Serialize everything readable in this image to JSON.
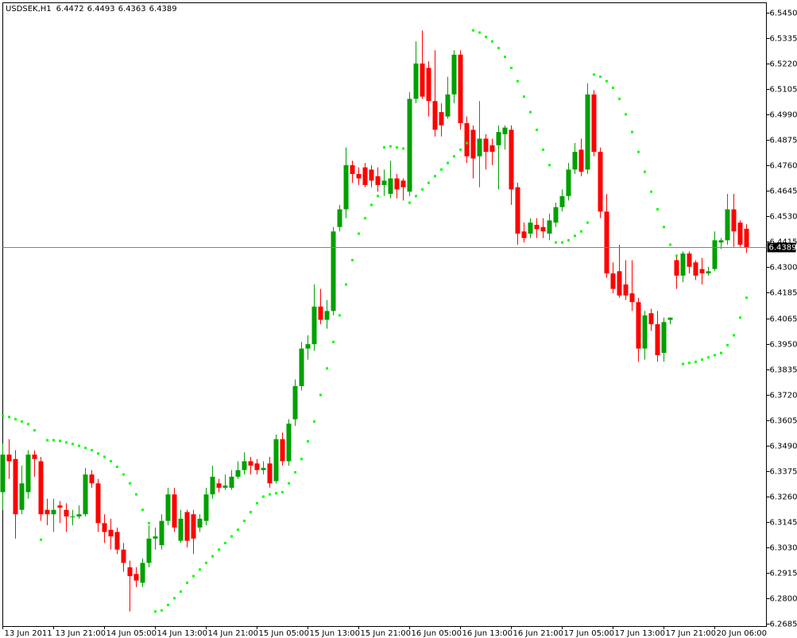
{
  "chart_data": {
    "type": "candlestick",
    "title": "USDSEK,H1",
    "up_color": "#00a000",
    "down_color": "#ff0000",
    "sar_color": "#00ff00",
    "ylim": [
      6.2674,
      6.5493
    ],
    "yticks": [
      {
        "value": 6.545,
        "label": "6.5450"
      },
      6.5335,
      {
        "value": 6.522,
        "label": "6.5220"
      },
      6.5105,
      {
        "value": 6.499,
        "label": "6.4990"
      },
      6.4875,
      {
        "value": 6.476,
        "label": "6.4760"
      },
      6.4645,
      {
        "value": 6.453,
        "label": "6.4530"
      },
      6.4415,
      {
        "value": 6.43,
        "label": "6.4300"
      },
      6.4185,
      6.4065,
      {
        "value": 6.395,
        "label": "6.3950"
      },
      6.3835,
      {
        "value": 6.372,
        "label": "6.3720"
      },
      6.3605,
      {
        "value": 6.349,
        "label": "6.3490"
      },
      6.3375,
      {
        "value": 6.326,
        "label": "6.3260"
      },
      6.3145,
      {
        "value": 6.303,
        "label": "6.3030"
      },
      6.2915,
      {
        "value": 6.28,
        "label": "6.2800"
      },
      6.2685
    ],
    "categories": [
      "13 Jun 2011",
      null,
      null,
      null,
      null,
      null,
      null,
      null,
      "13 Jun 21:00",
      null,
      null,
      null,
      null,
      null,
      null,
      null,
      "14 Jun 05:00",
      null,
      null,
      null,
      null,
      null,
      null,
      null,
      "14 Jun 13:00",
      null,
      null,
      null,
      null,
      null,
      null,
      null,
      "14 Jun 21:00",
      null,
      null,
      null,
      null,
      null,
      null,
      null,
      "15 Jun 05:00",
      null,
      null,
      null,
      null,
      null,
      null,
      null,
      "15 Jun 13:00",
      null,
      null,
      null,
      null,
      null,
      null,
      null,
      "15 Jun 21:00",
      null,
      null,
      null,
      null,
      null,
      null,
      null,
      "16 Jun 05:00",
      null,
      null,
      null,
      null,
      null,
      null,
      null,
      "16 Jun 13:00",
      null,
      null,
      null,
      null,
      null,
      null,
      null,
      "16 Jun 21:00",
      null,
      null,
      null,
      null,
      null,
      null,
      null,
      "17 Jun 05:00",
      null,
      null,
      null,
      null,
      null,
      null,
      null,
      "17 Jun 13:00",
      null,
      null,
      null,
      null,
      null,
      null,
      null,
      "17 Jun 21:00",
      null,
      null,
      null,
      null,
      null,
      null,
      null,
      "20 Jun 06:00",
      null,
      null,
      null,
      null,
      null
    ],
    "open": [
      6.328,
      6.345,
      6.343,
      6.32,
      6.328,
      6.345,
      6.342,
      6.32,
      6.318,
      6.322,
      6.32,
      6.317,
      6.317,
      6.318,
      6.336,
      6.332,
      6.314,
      6.311,
      6.31,
      6.302,
      6.294,
      6.291,
      6.287,
      6.296,
      6.307,
      6.304,
      6.315,
      6.327,
      6.306,
      6.319,
      6.318,
      6.312,
      6.315,
      6.327,
      6.332,
      6.33,
      6.33,
      6.335,
      6.338,
      6.342,
      6.341,
      6.338,
      6.341,
      6.333,
      6.352,
      6.342,
      6.361,
      6.376,
      6.393,
      6.395,
      6.412,
      6.406,
      6.41,
      6.448,
      6.456,
      6.476,
      6.472,
      6.475,
      6.474,
      6.471,
      6.467,
      6.463,
      6.47,
      6.469,
      6.464,
      6.506,
      6.522,
      6.52,
      6.505,
      6.5,
      6.498,
      6.508,
      6.526,
      6.495,
      6.492,
      6.48,
      6.488,
      6.485,
      6.485,
      6.49,
      6.492,
      6.466,
      6.446,
      6.445,
      6.449,
      6.448,
      6.445,
      6.45,
      6.457,
      6.462,
      6.474,
      6.483,
      6.474,
      6.508,
      6.482,
      6.455,
      6.427,
      6.428,
      6.422,
      6.418,
      6.414,
      6.393,
      6.409,
      6.404,
      6.391,
      6.406,
      6.433,
      6.426,
      6.436,
      6.432,
      6.429,
      6.427,
      6.429,
      6.441,
      6.442,
      6.456,
      6.45,
      6.4472
    ],
    "high": [
      6.35,
      6.352,
      6.347,
      6.34,
      6.347,
      6.347,
      6.344,
      6.325,
      6.325,
      6.324,
      6.323,
      6.32,
      6.322,
      6.339,
      6.338,
      6.334,
      6.318,
      6.316,
      6.312,
      6.305,
      6.297,
      6.294,
      6.298,
      6.313,
      6.312,
      6.318,
      6.33,
      6.33,
      6.32,
      6.32,
      6.32,
      6.318,
      6.33,
      6.34,
      6.334,
      6.336,
      6.338,
      6.342,
      6.346,
      6.344,
      6.343,
      6.342,
      6.344,
      6.354,
      6.355,
      6.361,
      6.379,
      6.396,
      6.399,
      6.422,
      6.42,
      6.415,
      6.448,
      6.458,
      6.484,
      6.478,
      6.475,
      6.477,
      6.476,
      6.475,
      6.474,
      6.478,
      6.472,
      6.47,
      6.509,
      6.532,
      6.537,
      6.523,
      6.528,
      6.504,
      6.516,
      6.528,
      6.528,
      6.498,
      6.494,
      6.505,
      6.49,
      6.488,
      6.494,
      6.494,
      6.494,
      6.468,
      6.45,
      6.452,
      6.452,
      6.452,
      6.454,
      6.459,
      6.465,
      6.477,
      6.486,
      6.488,
      6.513,
      6.51,
      6.484,
      6.463,
      6.432,
      6.44,
      6.433,
      6.433,
      6.416,
      6.41,
      6.411,
      6.41,
      6.407,
      6.407,
      6.435,
      6.437,
      6.437,
      6.433,
      6.434,
      6.43,
      6.446,
      6.443,
      6.463,
      6.463,
      6.451,
      6.4493
    ],
    "low": [
      6.32,
      6.334,
      6.307,
      6.318,
      6.325,
      6.335,
      6.315,
      6.313,
      6.31,
      6.314,
      6.31,
      6.313,
      6.316,
      6.317,
      6.33,
      6.31,
      6.305,
      6.302,
      6.3,
      6.292,
      6.274,
      6.285,
      6.285,
      6.294,
      6.302,
      6.302,
      6.313,
      6.31,
      6.305,
      6.303,
      6.3,
      6.31,
      6.313,
      6.325,
      6.328,
      6.329,
      6.329,
      6.334,
      6.336,
      6.336,
      6.336,
      6.336,
      6.33,
      6.332,
      6.34,
      6.34,
      6.358,
      6.374,
      6.388,
      6.392,
      6.404,
      6.402,
      6.408,
      6.446,
      6.452,
      6.468,
      6.467,
      6.466,
      6.466,
      6.464,
      6.462,
      6.461,
      6.461,
      6.46,
      6.462,
      6.504,
      6.506,
      6.498,
      6.489,
      6.489,
      6.497,
      6.504,
      6.492,
      6.477,
      6.47,
      6.466,
      6.474,
      6.476,
      6.465,
      6.483,
      6.458,
      6.44,
      6.441,
      6.443,
      6.443,
      6.443,
      6.442,
      6.448,
      6.455,
      6.46,
      6.472,
      6.471,
      6.472,
      6.48,
      6.452,
      6.425,
      6.418,
      6.416,
      6.415,
      6.41,
      6.387,
      6.388,
      6.401,
      6.387,
      6.387,
      6.404,
      6.42,
      6.423,
      6.427,
      6.424,
      6.422,
      6.426,
      6.428,
      6.438,
      6.44,
      6.439,
      6.439,
      6.4363
    ],
    "close": [
      6.345,
      6.342,
      6.318,
      6.332,
      6.345,
      6.343,
      6.318,
      6.318,
      6.32,
      6.321,
      6.317,
      6.317,
      6.318,
      6.336,
      6.332,
      6.314,
      6.31,
      6.308,
      6.302,
      6.296,
      6.29,
      6.288,
      6.296,
      6.307,
      6.308,
      6.315,
      6.327,
      6.312,
      6.316,
      6.306,
      6.307,
      6.316,
      6.327,
      6.335,
      6.33,
      6.331,
      6.335,
      6.338,
      6.342,
      6.34,
      6.338,
      6.339,
      6.332,
      6.352,
      6.342,
      6.359,
      6.376,
      6.393,
      6.395,
      6.412,
      6.406,
      6.41,
      6.446,
      6.456,
      6.476,
      6.472,
      6.47,
      6.467,
      6.469,
      6.467,
      6.469,
      6.47,
      6.465,
      6.466,
      6.506,
      6.522,
      6.507,
      6.505,
      6.492,
      6.494,
      6.508,
      6.526,
      6.495,
      6.48,
      6.479,
      6.488,
      6.482,
      6.482,
      6.491,
      6.493,
      6.465,
      6.445,
      6.443,
      6.45,
      6.447,
      6.446,
      6.451,
      6.457,
      6.462,
      6.474,
      6.482,
      6.473,
      6.508,
      6.482,
      6.455,
      6.427,
      6.42,
      6.417,
      6.417,
      6.414,
      6.393,
      6.408,
      6.404,
      6.39,
      6.405,
      6.407,
      6.426,
      6.436,
      6.43,
      6.426,
      6.427,
      6.428,
      6.442,
      6.442,
      6.456,
      6.446,
      6.44,
      6.4389
    ],
    "sar": [
      6.3627,
      6.362,
      6.361,
      6.36,
      6.3588,
      6.356,
      6.3065,
      6.3515,
      6.3515,
      6.3512,
      6.3505,
      6.3498,
      6.349,
      6.348,
      6.347,
      6.3455,
      6.344,
      6.342,
      6.3395,
      6.336,
      6.332,
      6.327,
      6.32,
      6.314,
      6.274,
      6.2745,
      6.277,
      6.28,
      6.283,
      6.287,
      6.29,
      6.293,
      6.296,
      6.299,
      6.302,
      6.305,
      6.308,
      6.311,
      6.315,
      6.319,
      6.323,
      6.326,
      6.327,
      6.3275,
      6.328,
      6.332,
      6.337,
      6.343,
      6.351,
      6.36,
      6.372,
      6.384,
      6.396,
      6.408,
      6.422,
      6.433,
      6.445,
      6.452,
      6.458,
      6.462,
      6.484,
      6.4845,
      6.484,
      6.4835,
      6.459,
      6.462,
      6.465,
      6.468,
      6.471,
      6.474,
      6.477,
      6.48,
      6.483,
      6.486,
      6.537,
      6.536,
      6.534,
      6.532,
      6.529,
      6.525,
      6.52,
      6.514,
      6.507,
      6.5,
      6.492,
      6.483,
      6.476,
      6.441,
      6.441,
      6.442,
      6.444,
      6.446,
      6.45,
      6.517,
      6.516,
      6.514,
      6.511,
      6.506,
      6.499,
      6.491,
      6.482,
      6.473,
      6.464,
      6.456,
      6.448,
      6.44,
      6.435,
      6.386,
      6.3865,
      6.387,
      6.388,
      6.389,
      6.39,
      6.391,
      6.3945,
      6.399,
      6.407,
      6.416
    ]
  }
}
